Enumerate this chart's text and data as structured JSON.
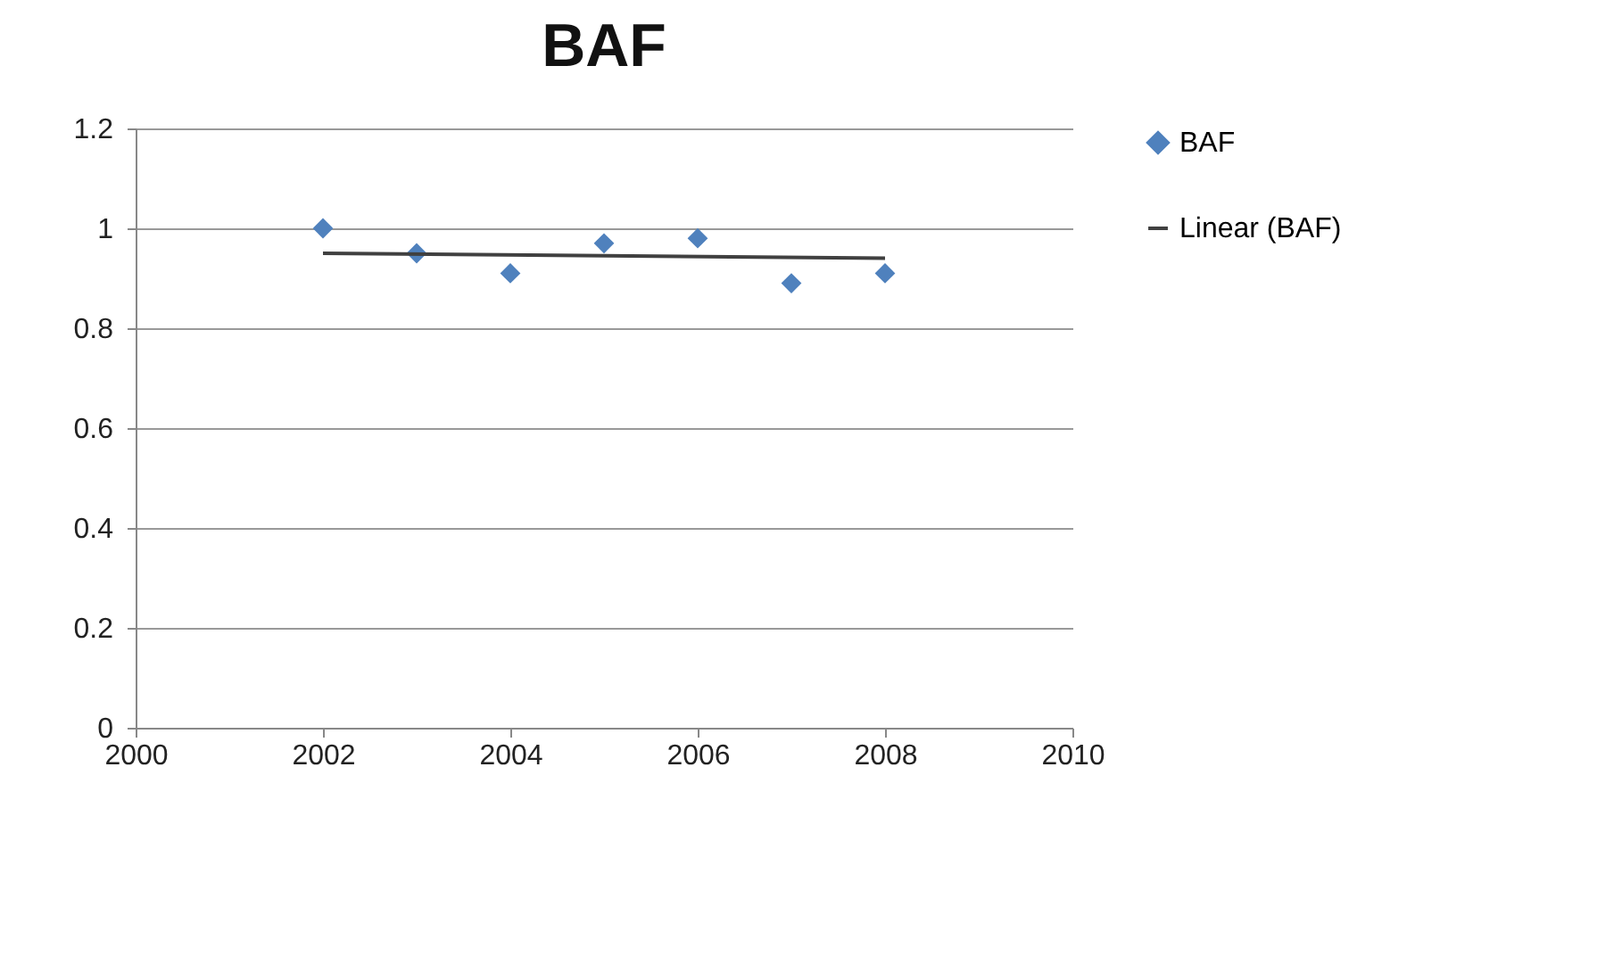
{
  "chart_data": {
    "type": "scatter",
    "title": "BAF",
    "x": [
      2002,
      2003,
      2004,
      2005,
      2006,
      2007,
      2008
    ],
    "series": [
      {
        "name": "BAF",
        "color": "#4f81bd",
        "marker": "diamond",
        "values": [
          1.0,
          0.95,
          0.91,
          0.97,
          0.98,
          0.89,
          0.91
        ]
      },
      {
        "name": "Linear (BAF)",
        "type": "line",
        "color": "#404040",
        "x": [
          2002,
          2008
        ],
        "values": [
          0.95,
          0.94
        ]
      }
    ],
    "xlim": [
      2000,
      2010
    ],
    "xticks": [
      2000,
      2002,
      2004,
      2006,
      2008,
      2010
    ],
    "ylim": [
      0,
      1.2
    ],
    "yticks": [
      0,
      0.2,
      0.4,
      0.6,
      0.8,
      1,
      1.2
    ],
    "grid": "y",
    "legend": "right"
  }
}
